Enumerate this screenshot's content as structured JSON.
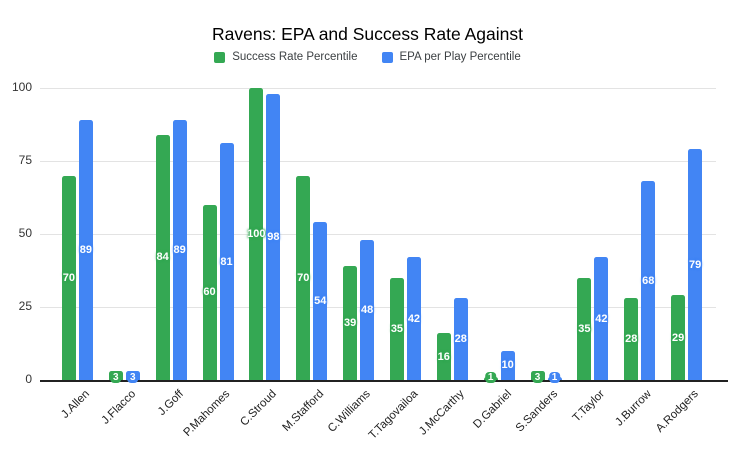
{
  "title": "Ravens: EPA and Success Rate Against",
  "chart_data": {
    "type": "bar",
    "title": "Ravens: EPA and Success Rate Against",
    "xlabel": "",
    "ylabel": "",
    "ylim": [
      0,
      100
    ],
    "yticks": [
      0,
      25,
      50,
      75,
      100
    ],
    "grid": true,
    "legend_position": "top",
    "data_labels": true,
    "categories": [
      "J.Allen",
      "J.Flacco",
      "J.Goff",
      "P.Mahomes",
      "C.Stroud",
      "M.Stafford",
      "C.Williams",
      "T.Tagovailoa",
      "J.McCarthy",
      "D.Gabriel",
      "S.Sanders",
      "T.Taylor",
      "J.Burrow",
      "A.Rodgers"
    ],
    "series": [
      {
        "name": "Success Rate Percentile",
        "color": "#34a853",
        "values": [
          70,
          3,
          84,
          60,
          100,
          70,
          39,
          35,
          16,
          1,
          3,
          35,
          28,
          29
        ]
      },
      {
        "name": "EPA per Play Percentile",
        "color": "#4285f4",
        "values": [
          89,
          3,
          89,
          81,
          98,
          54,
          48,
          42,
          28,
          10,
          1,
          42,
          68,
          79
        ]
      }
    ]
  },
  "colors": {
    "background": "#ffffff",
    "gridline": "#e3e3e3",
    "axis_line": "#212121",
    "title_text": "#000000",
    "legend_text": "#3c4043",
    "tick_text": "#333333"
  }
}
